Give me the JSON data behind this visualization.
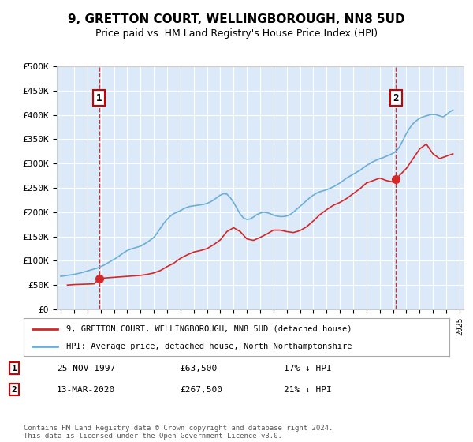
{
  "title": "9, GRETTON COURT, WELLINGBOROUGH, NN8 5UD",
  "subtitle": "Price paid vs. HM Land Registry's House Price Index (HPI)",
  "ylabel": "",
  "background_color": "#dce9f8",
  "plot_bg_color": "#dce9f8",
  "ylim": [
    0,
    500000
  ],
  "yticks": [
    0,
    50000,
    100000,
    150000,
    200000,
    250000,
    300000,
    350000,
    400000,
    450000,
    500000
  ],
  "ytick_labels": [
    "£0",
    "£50K",
    "£100K",
    "£150K",
    "£200K",
    "£250K",
    "£300K",
    "£350K",
    "£400K",
    "£450K",
    "£500K"
  ],
  "hpi_color": "#6baed6",
  "price_color": "#d62728",
  "marker_color": "#d62728",
  "sale1_date": 1997.9,
  "sale1_price": 63500,
  "sale1_label": "1",
  "sale2_date": 2020.2,
  "sale2_price": 267500,
  "sale2_label": "2",
  "legend_line1": "9, GRETTON COURT, WELLINGBOROUGH, NN8 5UD (detached house)",
  "legend_line2": "HPI: Average price, detached house, North Northamptonshire",
  "annotation1_date": "25-NOV-1997",
  "annotation1_price": "£63,500",
  "annotation1_hpi": "17% ↓ HPI",
  "annotation2_date": "13-MAR-2020",
  "annotation2_price": "£267,500",
  "annotation2_hpi": "21% ↓ HPI",
  "footnote": "Contains HM Land Registry data © Crown copyright and database right 2024.\nThis data is licensed under the Open Government Licence v3.0.",
  "xtick_years": [
    1995,
    1996,
    1997,
    1998,
    1999,
    2000,
    2001,
    2002,
    2003,
    2004,
    2005,
    2006,
    2007,
    2008,
    2009,
    2010,
    2011,
    2012,
    2013,
    2014,
    2015,
    2016,
    2017,
    2018,
    2019,
    2020,
    2021,
    2022,
    2023,
    2024,
    2025
  ],
  "hpi_x": [
    1995,
    1995.25,
    1995.5,
    1995.75,
    1996,
    1996.25,
    1996.5,
    1996.75,
    1997,
    1997.25,
    1997.5,
    1997.75,
    1998,
    1998.25,
    1998.5,
    1998.75,
    1999,
    1999.25,
    1999.5,
    1999.75,
    2000,
    2000.25,
    2000.5,
    2000.75,
    2001,
    2001.25,
    2001.5,
    2001.75,
    2002,
    2002.25,
    2002.5,
    2002.75,
    2003,
    2003.25,
    2003.5,
    2003.75,
    2004,
    2004.25,
    2004.5,
    2004.75,
    2005,
    2005.25,
    2005.5,
    2005.75,
    2006,
    2006.25,
    2006.5,
    2006.75,
    2007,
    2007.25,
    2007.5,
    2007.75,
    2008,
    2008.25,
    2008.5,
    2008.75,
    2009,
    2009.25,
    2009.5,
    2009.75,
    2010,
    2010.25,
    2010.5,
    2010.75,
    2011,
    2011.25,
    2011.5,
    2011.75,
    2012,
    2012.25,
    2012.5,
    2012.75,
    2013,
    2013.25,
    2013.5,
    2013.75,
    2014,
    2014.25,
    2014.5,
    2014.75,
    2015,
    2015.25,
    2015.5,
    2015.75,
    2016,
    2016.25,
    2016.5,
    2016.75,
    2017,
    2017.25,
    2017.5,
    2017.75,
    2018,
    2018.25,
    2018.5,
    2018.75,
    2019,
    2019.25,
    2019.5,
    2019.75,
    2020,
    2020.25,
    2020.5,
    2020.75,
    2021,
    2021.25,
    2021.5,
    2021.75,
    2022,
    2022.25,
    2022.5,
    2022.75,
    2023,
    2023.25,
    2023.5,
    2023.75,
    2024,
    2024.25,
    2024.5
  ],
  "hpi_y": [
    68000,
    69000,
    70000,
    71000,
    72000,
    73500,
    75000,
    77000,
    79000,
    81000,
    83000,
    85000,
    88000,
    91000,
    95000,
    99000,
    103000,
    107000,
    112000,
    117000,
    121000,
    124000,
    126000,
    128000,
    130000,
    134000,
    138000,
    143000,
    148000,
    157000,
    167000,
    177000,
    185000,
    192000,
    197000,
    200000,
    203000,
    207000,
    210000,
    212000,
    213000,
    214000,
    215000,
    216000,
    218000,
    221000,
    225000,
    230000,
    235000,
    238000,
    237000,
    230000,
    220000,
    208000,
    196000,
    188000,
    185000,
    186000,
    190000,
    195000,
    198000,
    200000,
    199000,
    197000,
    194000,
    192000,
    191000,
    191000,
    192000,
    195000,
    200000,
    206000,
    212000,
    218000,
    224000,
    230000,
    235000,
    239000,
    242000,
    244000,
    246000,
    249000,
    252000,
    256000,
    260000,
    265000,
    270000,
    274000,
    278000,
    282000,
    286000,
    291000,
    296000,
    300000,
    304000,
    307000,
    310000,
    312000,
    315000,
    318000,
    321000,
    326000,
    335000,
    348000,
    362000,
    373000,
    382000,
    388000,
    393000,
    396000,
    398000,
    400000,
    401000,
    400000,
    398000,
    396000,
    400000,
    406000,
    410000
  ],
  "price_x": [
    1995.5,
    1996,
    1996.5,
    1997,
    1997.5,
    1997.9,
    1998.5,
    1999,
    1999.5,
    2000,
    2000.5,
    2001,
    2001.5,
    2002,
    2002.5,
    2003,
    2003.5,
    2004,
    2004.5,
    2005,
    2005.5,
    2006,
    2006.5,
    2007,
    2007.5,
    2008,
    2008.5,
    2009,
    2009.5,
    2010,
    2010.5,
    2011,
    2011.5,
    2012,
    2012.5,
    2013,
    2013.5,
    2014,
    2014.5,
    2015,
    2015.5,
    2016,
    2016.5,
    2017,
    2017.5,
    2018,
    2018.5,
    2019,
    2019.5,
    2020,
    2020.2,
    2021,
    2021.5,
    2022,
    2022.5,
    2023,
    2023.5,
    2024,
    2024.5
  ],
  "price_y": [
    50000,
    51000,
    51500,
    52000,
    52500,
    63500,
    65000,
    66000,
    67000,
    68000,
    69000,
    70000,
    72000,
    75000,
    80000,
    88000,
    95000,
    105000,
    112000,
    118000,
    121000,
    125000,
    133000,
    143000,
    160000,
    168000,
    160000,
    145000,
    142000,
    148000,
    155000,
    163000,
    163000,
    160000,
    158000,
    162000,
    170000,
    182000,
    195000,
    205000,
    214000,
    220000,
    228000,
    238000,
    248000,
    260000,
    265000,
    270000,
    265000,
    262000,
    267500,
    290000,
    310000,
    330000,
    340000,
    320000,
    310000,
    315000,
    320000
  ]
}
